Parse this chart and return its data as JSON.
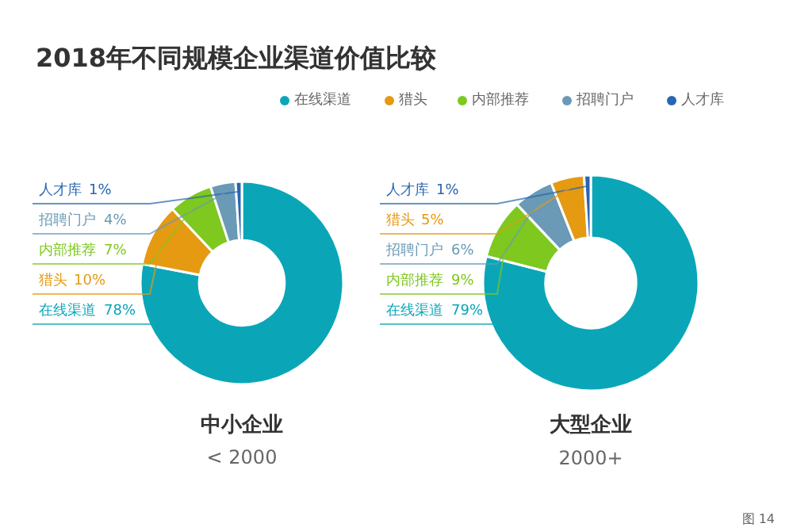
{
  "chart_data": [
    {
      "type": "donut",
      "title": "2018年不同规模企业渠道价值比较",
      "legend": "top right",
      "categories": [
        "在线渠道",
        "猎头",
        "内部推荐",
        "招聘门户",
        "人才库"
      ],
      "values": [
        78,
        10,
        7,
        4,
        1
      ],
      "colors": [
        "#0aa6b8",
        "#e59a12",
        "#7ec820",
        "#6a9ab5",
        "#2766b0"
      ],
      "value_labels": [
        "78%",
        "10%",
        "7%",
        "4%",
        "1%"
      ],
      "annotations": [
        "中小企业",
        "< 2000"
      ]
    },
    {
      "type": "donut",
      "categories": [
        "在线渠道",
        "内部推荐",
        "招聘门户",
        "猎头",
        "人才库"
      ],
      "values": [
        79,
        9,
        6,
        5,
        1
      ],
      "colors": [
        "#0aa6b8",
        "#7ec820",
        "#6a9ab5",
        "#e59a12",
        "#2766b0"
      ],
      "value_labels": [
        "79%",
        "9%",
        "6%",
        "5%",
        "1%"
      ],
      "annotations": [
        "大型企业",
        "2000+",
        "图 14"
      ]
    }
  ]
}
